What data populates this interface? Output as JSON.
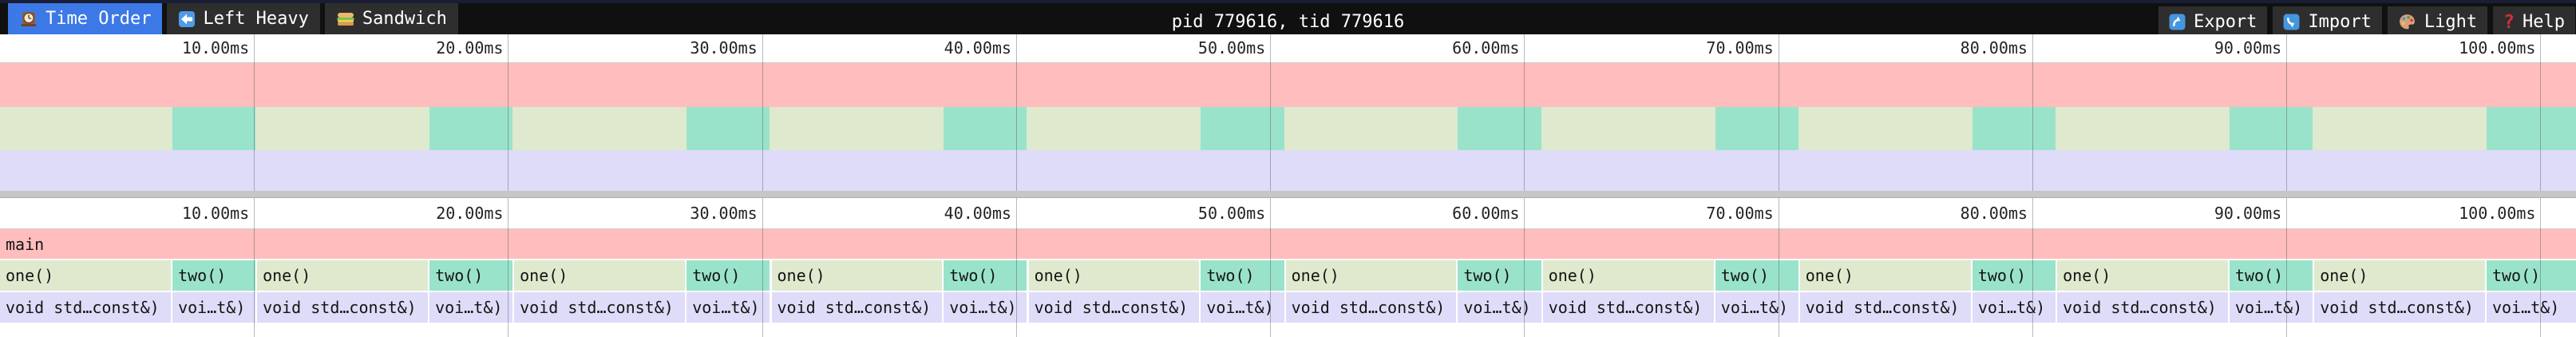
{
  "toolbar": {
    "tabs": [
      {
        "label": "Time Order",
        "icon": "clock-icon",
        "active": true
      },
      {
        "label": "Left Heavy",
        "icon": "left-arrow-icon",
        "active": false
      },
      {
        "label": "Sandwich",
        "icon": "sandwich-icon",
        "active": false
      }
    ],
    "title": "pid 779616, tid 779616",
    "actions": [
      {
        "label": "Export",
        "icon": "export-icon"
      },
      {
        "label": "Import",
        "icon": "import-icon"
      },
      {
        "label": "Light",
        "icon": "palette-icon"
      },
      {
        "label": "Help",
        "icon": "help-icon"
      }
    ]
  },
  "colors": {
    "accent_blue": "#3c79e6",
    "icon_blue": "#4f9be8",
    "frame_main_pink": "#ffbdbd",
    "frame_one_green": "#dfe9ce",
    "frame_two_teal": "#9ae3cb",
    "frame_void_lavender": "#dedcf8",
    "divider_gray": "#c6c6c6",
    "topstrip_navy": "#191d35"
  },
  "chart_data": {
    "type": "flamegraph",
    "view_ms": 101.4,
    "time_unit": "ms",
    "ticks": [
      {
        "ms": 10,
        "label": "10.00ms"
      },
      {
        "ms": 20,
        "label": "20.00ms"
      },
      {
        "ms": 30,
        "label": "30.00ms"
      },
      {
        "ms": 40,
        "label": "40.00ms"
      },
      {
        "ms": 50,
        "label": "50.00ms"
      },
      {
        "ms": 60,
        "label": "60.00ms"
      },
      {
        "ms": 70,
        "label": "70.00ms"
      },
      {
        "ms": 80,
        "label": "80.00ms"
      },
      {
        "ms": 90,
        "label": "90.00ms"
      },
      {
        "ms": 100,
        "label": "100.00ms"
      }
    ],
    "root": {
      "name": "main",
      "start_ms": 0,
      "end_ms": 101.4
    },
    "blocks": [
      {
        "name": "one()",
        "child": "void std…const&)",
        "start_ms": 0,
        "end_ms": 6.72
      },
      {
        "name": "two()",
        "child": "voi…t&)",
        "start_ms": 6.79,
        "end_ms": 10.06
      },
      {
        "name": "one()",
        "child": "void std…const&)",
        "start_ms": 10.12,
        "end_ms": 16.85
      },
      {
        "name": "two()",
        "child": "voi…t&)",
        "start_ms": 16.91,
        "end_ms": 20.18
      },
      {
        "name": "one()",
        "child": "void std…const&)",
        "start_ms": 20.24,
        "end_ms": 26.97
      },
      {
        "name": "two()",
        "child": "voi…t&)",
        "start_ms": 27.03,
        "end_ms": 30.3
      },
      {
        "name": "one()",
        "child": "void std…const&)",
        "start_ms": 30.37,
        "end_ms": 37.09
      },
      {
        "name": "two()",
        "child": "voi…t&)",
        "start_ms": 37.15,
        "end_ms": 40.42
      },
      {
        "name": "one()",
        "child": "void std…const&)",
        "start_ms": 40.49,
        "end_ms": 47.21
      },
      {
        "name": "two()",
        "child": "voi…t&)",
        "start_ms": 47.27,
        "end_ms": 50.55
      },
      {
        "name": "one()",
        "child": "void std…const&)",
        "start_ms": 50.61,
        "end_ms": 57.33
      },
      {
        "name": "two()",
        "child": "voi…t&)",
        "start_ms": 57.39,
        "end_ms": 60.67
      },
      {
        "name": "one()",
        "child": "void std…const&)",
        "start_ms": 60.73,
        "end_ms": 67.46
      },
      {
        "name": "two()",
        "child": "voi…t&)",
        "start_ms": 67.52,
        "end_ms": 70.79
      },
      {
        "name": "one()",
        "child": "void std…const&)",
        "start_ms": 70.85,
        "end_ms": 77.58
      },
      {
        "name": "two()",
        "child": "voi…t&)",
        "start_ms": 77.64,
        "end_ms": 80.91
      },
      {
        "name": "one()",
        "child": "void std…const&)",
        "start_ms": 80.98,
        "end_ms": 87.7
      },
      {
        "name": "two()",
        "child": "voi…t&)",
        "start_ms": 87.76,
        "end_ms": 91.03
      },
      {
        "name": "one()",
        "child": "void std…const&)",
        "start_ms": 91.1,
        "end_ms": 97.82
      },
      {
        "name": "two()",
        "child": "voi…t&)",
        "start_ms": 97.88,
        "end_ms": 101.4
      }
    ]
  }
}
